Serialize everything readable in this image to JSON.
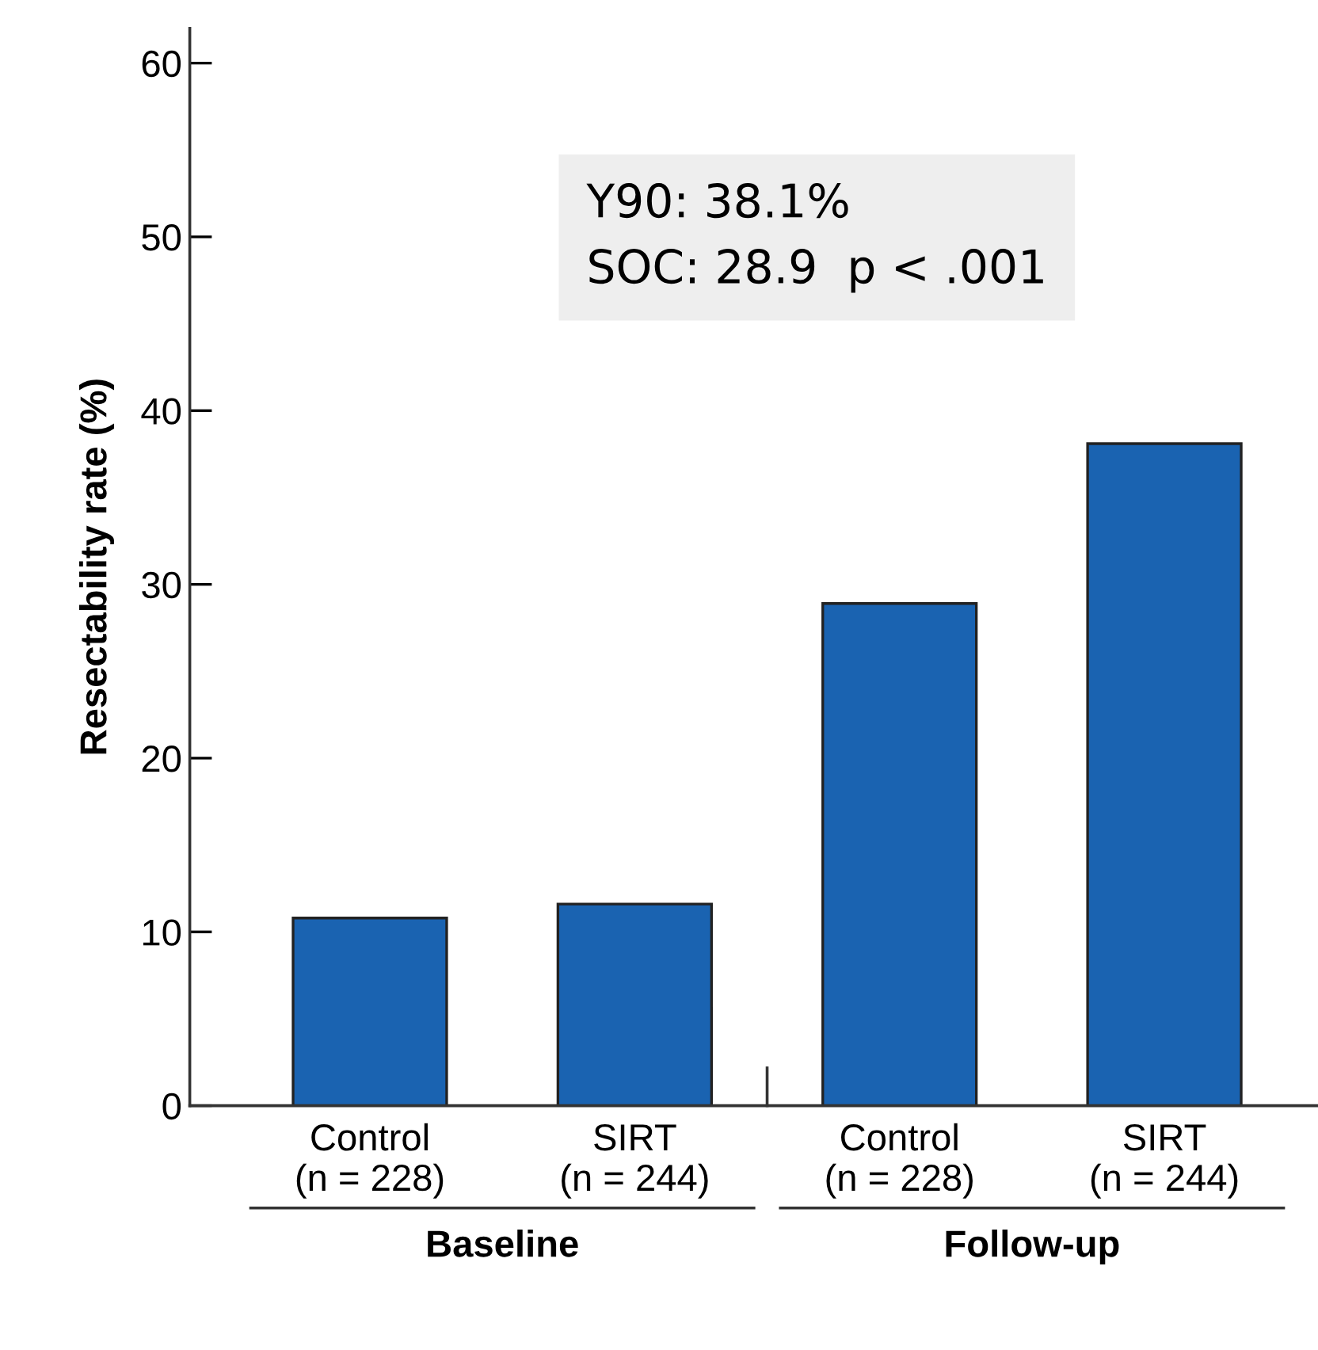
{
  "chart_data": {
    "type": "bar",
    "ylabel": "Resectability rate (%)",
    "categories": [
      "Control\n(n = 228)",
      "SIRT\n(n = 244)",
      "Control\n(n = 228)",
      "SIRT\n(n = 244)"
    ],
    "values": [
      10.8,
      11.6,
      28.9,
      38.1
    ],
    "color": "#1a63b1",
    "ylim": [
      0,
      62
    ],
    "yticks": [
      0,
      10,
      20,
      30,
      40,
      50,
      60
    ],
    "grid": false,
    "annotations": [
      "Y90: 38.1%\nSOC: 28.9  p < .001",
      "Baseline",
      "Follow-up"
    ]
  }
}
